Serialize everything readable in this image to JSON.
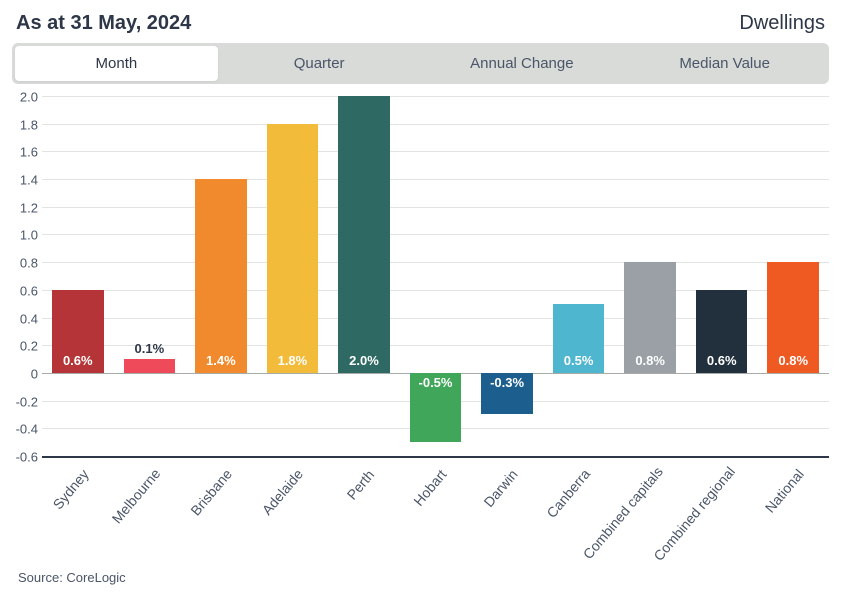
{
  "header": {
    "date_label": "As at 31 May, 2024",
    "category_label": "Dwellings"
  },
  "tabs": {
    "items": [
      {
        "label": "Month",
        "active": true
      },
      {
        "label": "Quarter",
        "active": false
      },
      {
        "label": "Annual Change",
        "active": false
      },
      {
        "label": "Median Value",
        "active": false
      }
    ]
  },
  "chart": {
    "type": "bar",
    "ylim": [
      -0.6,
      2.0
    ],
    "ytick_step": 0.2,
    "grid_color": "#e2e4e2",
    "zero_line_color": "#a8aca8",
    "baseline_color": "#2d3748",
    "background_color": "#ffffff",
    "label_fontsize": 13,
    "xlabel_fontsize": 14,
    "xlabel_rotation_deg": -50,
    "bar_width_pct": 72,
    "categories": [
      "Sydney",
      "Melbourne",
      "Brisbane",
      "Adelaide",
      "Perth",
      "Hobart",
      "Darwin",
      "Canberra",
      "Combined capitals",
      "Combined regional",
      "National"
    ],
    "values": [
      0.6,
      0.1,
      1.4,
      1.8,
      2.0,
      -0.5,
      -0.3,
      0.5,
      0.8,
      0.6,
      0.8
    ],
    "value_labels": [
      "0.6%",
      "0.1%",
      "1.4%",
      "1.8%",
      "2.0%",
      "-0.5%",
      "-0.3%",
      "0.5%",
      "0.8%",
      "0.6%",
      "0.8%"
    ],
    "bar_colors": [
      "#b53437",
      "#ef4a5a",
      "#f08a2c",
      "#f2bb3a",
      "#2e6a63",
      "#3fa65a",
      "#1c5e8e",
      "#4fb6cf",
      "#9aa0a6",
      "#22303e",
      "#ef5a23"
    ],
    "label_inside_color": "#ffffff",
    "label_outside_color": "#2d3748",
    "label_inside_threshold": 0.25
  },
  "source": {
    "text": "Source: CoreLogic"
  }
}
